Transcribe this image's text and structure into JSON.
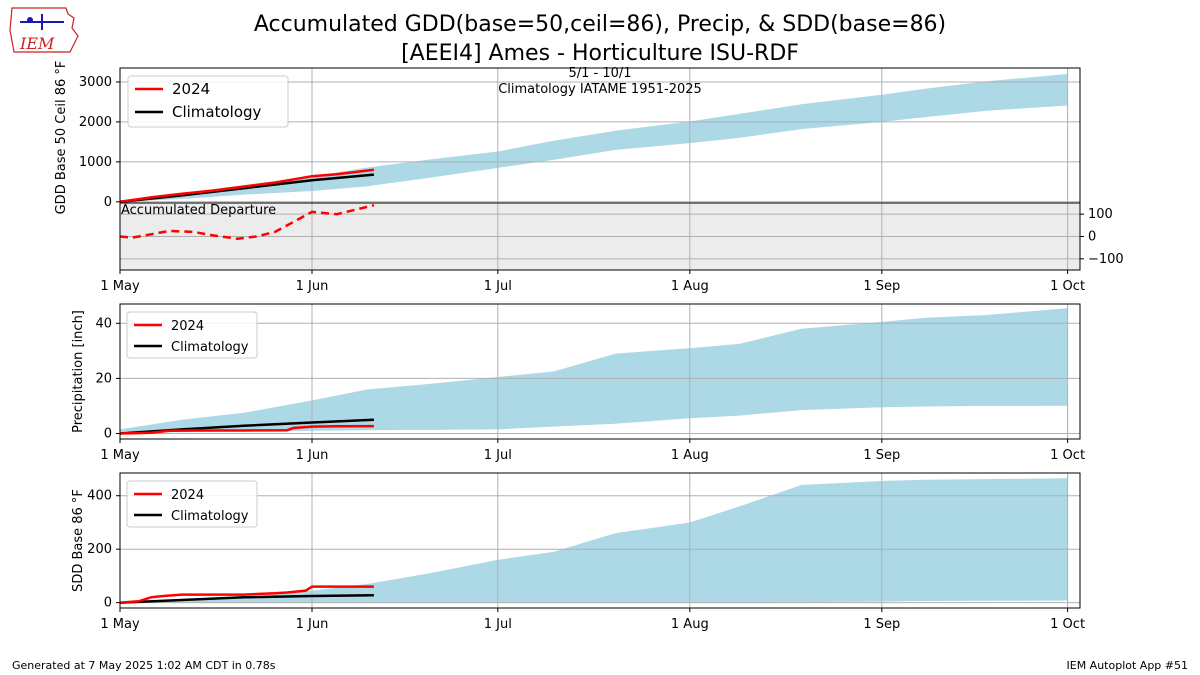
{
  "page": {
    "title_line1": "Accumulated GDD(base=50,ceil=86), Precip, & SDD(base=86)",
    "title_line2": "[AEEI4] Ames - Horticulture ISU-RDF",
    "subtitle_period": "5/1 - 10/1",
    "subtitle_climo": "Climatology IATAME 1951-2025",
    "logo_text": "IEM",
    "footer_left": "Generated at 7 May 2025 1:02 AM CDT in 0.78s",
    "footer_right": "IEM Autoplot App #51"
  },
  "colors": {
    "actual": "#ff0000",
    "climatology": "#000000",
    "range_fill": "#add8e6",
    "departure_bg": "#ececec",
    "grid": "#b0b0b0",
    "logo_red": "#cc2222",
    "logo_blue": "#1a1ab0"
  },
  "chart_data": [
    {
      "id": "gdd",
      "type": "area",
      "ylabel": "GDD Base 50 Ceil 86 °F",
      "ylim": [
        -30,
        3350
      ],
      "yticks": [
        0,
        1000,
        2000,
        3000
      ],
      "x_axis": "day_of_season",
      "xlim": [
        0,
        155
      ],
      "grid": true,
      "legend": "upper-left",
      "series": [
        {
          "name": "2024",
          "x": [
            0,
            5,
            10,
            15,
            20,
            25,
            31,
            35,
            41
          ],
          "values": [
            0,
            110,
            200,
            280,
            380,
            480,
            640,
            690,
            800
          ]
        },
        {
          "name": "Climatology",
          "x": [
            0,
            10,
            20,
            31,
            41
          ],
          "values": [
            0,
            160,
            340,
            540,
            680
          ]
        }
      ],
      "range": {
        "x": [
          0,
          10,
          20,
          31,
          40,
          50,
          61,
          70,
          80,
          92,
          100,
          110,
          123,
          130,
          140,
          153
        ],
        "lower": [
          0,
          70,
          180,
          270,
          390,
          600,
          850,
          1050,
          1300,
          1470,
          1600,
          1820,
          2000,
          2120,
          2280,
          2410
        ],
        "upper": [
          30,
          220,
          420,
          640,
          860,
          1060,
          1260,
          1530,
          1780,
          2010,
          2200,
          2440,
          2680,
          2830,
          3020,
          3200
        ]
      }
    },
    {
      "id": "departure",
      "type": "line",
      "annotation": "Accumulated Departure",
      "ylim": [
        -150,
        150
      ],
      "yticks": [
        -100,
        0,
        100
      ],
      "x_axis": "day_of_season",
      "xlim": [
        0,
        155
      ],
      "series": [
        {
          "name": "2024",
          "x": [
            0,
            2,
            5,
            8,
            12,
            15,
            19,
            22,
            25,
            29,
            31,
            35,
            38,
            41
          ],
          "values": [
            0,
            -5,
            10,
            25,
            20,
            5,
            -10,
            0,
            20,
            80,
            110,
            100,
            120,
            140
          ]
        }
      ]
    },
    {
      "id": "precip",
      "type": "area",
      "ylabel": "Precipitation [inch]",
      "ylim": [
        -2,
        47
      ],
      "yticks": [
        0,
        20,
        40
      ],
      "x_axis": "day_of_season",
      "xlim": [
        0,
        155
      ],
      "grid": true,
      "legend": "upper-left",
      "series": [
        {
          "name": "2024",
          "x": [
            0,
            5,
            8,
            12,
            20,
            27,
            28,
            31,
            35,
            41
          ],
          "values": [
            0,
            0.3,
            1.0,
            1.1,
            1.1,
            1.2,
            2.0,
            2.5,
            2.6,
            2.7
          ]
        },
        {
          "name": "Climatology",
          "x": [
            0,
            10,
            20,
            31,
            41
          ],
          "values": [
            0,
            1.5,
            2.8,
            4.0,
            5.0
          ]
        }
      ],
      "range": {
        "x": [
          0,
          10,
          20,
          31,
          40,
          50,
          61,
          70,
          80,
          92,
          100,
          110,
          123,
          130,
          140,
          153
        ],
        "lower": [
          0,
          0.5,
          0.8,
          1.0,
          1.2,
          1.3,
          1.5,
          2.5,
          3.5,
          5.5,
          6.5,
          8.5,
          9.5,
          9.8,
          10.0,
          10.1
        ],
        "upper": [
          1.5,
          5.0,
          7.5,
          12.0,
          16.0,
          18.0,
          20.5,
          22.5,
          29.0,
          31.0,
          32.5,
          38.0,
          40.5,
          42.0,
          43.0,
          45.5
        ]
      }
    },
    {
      "id": "sdd",
      "type": "area",
      "ylabel": "SDD Base 86 °F",
      "ylim": [
        -20,
        485
      ],
      "yticks": [
        0,
        200,
        400
      ],
      "x_axis": "day_of_season",
      "xlim": [
        0,
        155
      ],
      "grid": true,
      "legend": "upper-left",
      "series": [
        {
          "name": "2024",
          "x": [
            0,
            3,
            5,
            7,
            10,
            15,
            20,
            25,
            27,
            30,
            31,
            41
          ],
          "values": [
            0,
            5,
            20,
            25,
            30,
            30,
            30,
            35,
            38,
            45,
            60,
            60
          ]
        },
        {
          "name": "Climatology",
          "x": [
            0,
            10,
            20,
            31,
            41
          ],
          "values": [
            0,
            10,
            20,
            25,
            28
          ]
        }
      ],
      "range": {
        "x": [
          0,
          10,
          20,
          31,
          40,
          50,
          61,
          70,
          80,
          92,
          100,
          110,
          123,
          130,
          140,
          153
        ],
        "lower": [
          0,
          0,
          0,
          0,
          0,
          0,
          0,
          0,
          0,
          0,
          0,
          2,
          4,
          6,
          7,
          8
        ],
        "upper": [
          0,
          5,
          20,
          45,
          70,
          110,
          160,
          190,
          260,
          300,
          360,
          440,
          455,
          460,
          462,
          465
        ]
      }
    }
  ],
  "x_axis": {
    "tick_positions": [
      0,
      31,
      61,
      92,
      123,
      153
    ],
    "tick_labels": [
      "1 May",
      "1 Jun",
      "1 Jul",
      "1 Aug",
      "1 Sep",
      "1 Oct"
    ]
  },
  "legend_labels": {
    "actual": "2024",
    "climatology": "Climatology"
  }
}
